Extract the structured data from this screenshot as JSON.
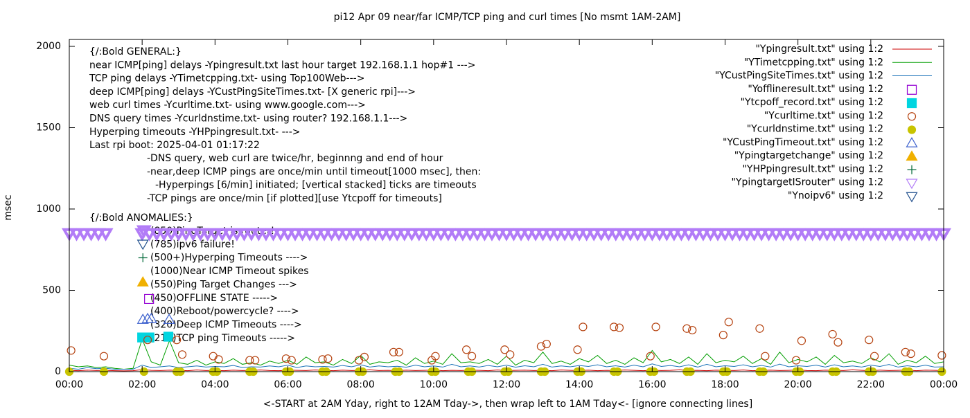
{
  "chart_data": {
    "type": "mixed",
    "title": "pi12 Apr 09  near/far ICMP/TCP ping and curl times [No msmt 1AM-2AM]",
    "x_label": "<-START at 2AM Yday, right to 12AM Tday->, then wrap left to 1AM Tday<- [ignore connecting lines]",
    "y_label": "msec",
    "xlim": [
      0,
      24
    ],
    "ylim": [
      0,
      2000
    ],
    "xticks": [
      {
        "value": 0,
        "label": "00:00"
      },
      {
        "value": 2,
        "label": "02:00"
      },
      {
        "value": 4,
        "label": "04:00"
      },
      {
        "value": 6,
        "label": "06:00"
      },
      {
        "value": 8,
        "label": "08:00"
      },
      {
        "value": 10,
        "label": "10:00"
      },
      {
        "value": 12,
        "label": "12:00"
      },
      {
        "value": 14,
        "label": "14:00"
      },
      {
        "value": 16,
        "label": "16:00"
      },
      {
        "value": 18,
        "label": "18:00"
      },
      {
        "value": 20,
        "label": "20:00"
      },
      {
        "value": 22,
        "label": "22:00"
      },
      {
        "value": 24,
        "label": "00:00"
      }
    ],
    "yticks": [
      0,
      500,
      1000,
      1500,
      2000
    ],
    "grid": false,
    "legend": "top-right",
    "annotations": [
      "{/:Bold GENERAL:}",
      "near ICMP[ping] delays -Ypingresult.txt last hour target 192.168.1.1 hop#1 --->",
      "TCP ping delays -YTimetcpping.txt- using Top100Web--->",
      "deep ICMP[ping] delays -YCustPingSiteTimes.txt- [X generic rpi]--->",
      "web curl times -Ycurltime.txt- using www.google.com--->",
      "DNS query times -Ycurldnstime.txt- using router? 192.168.1.1--->",
      "Hyperping timeouts -YHPpingresult.txt- --->",
      "Last rpi boot: 2025-04-01 01:17:22",
      "-DNS query, web curl are twice/hr, beginnng and end of hour",
      "-near,deep ICMP pings are once/min until timeout[1000 msec], then:",
      "-Hyperpings [6/min] initiated; [vertical stacked] ticks are timeouts",
      "-TCP pings are once/min [if plotted][use Ytcpoff for timeouts]",
      "{/:Bold ANOMALIES:}",
      "(850)PingTarget is router!",
      "(785)ipv6 failure!",
      "(500+)Hyperping Timeouts ---->",
      "(1000)Near ICMP Timeout spikes",
      "(550)Ping Target Changes --->",
      "(450)OFFLINE STATE ----->",
      "(400)Reboot/powercycle? ---->",
      "(320)Deep ICMP Timeouts ---->",
      "(210)TCP ping Timeouts ----->"
    ],
    "x": [
      0,
      0.25,
      0.5,
      0.75,
      1,
      1.25,
      1.5,
      1.75,
      2,
      2.25,
      2.5,
      2.75,
      3,
      3.25,
      3.5,
      3.75,
      4,
      4.25,
      4.5,
      4.75,
      5,
      5.25,
      5.5,
      5.75,
      6,
      6.25,
      6.5,
      6.75,
      7,
      7.25,
      7.5,
      7.75,
      8,
      8.25,
      8.5,
      8.75,
      9,
      9.25,
      9.5,
      9.75,
      10,
      10.25,
      10.5,
      10.75,
      11,
      11.25,
      11.5,
      11.75,
      12,
      12.25,
      12.5,
      12.75,
      13,
      13.25,
      13.5,
      13.75,
      14,
      14.25,
      14.5,
      14.75,
      15,
      15.25,
      15.5,
      15.75,
      16,
      16.25,
      16.5,
      16.75,
      17,
      17.25,
      17.5,
      17.75,
      18,
      18.25,
      18.5,
      18.75,
      19,
      19.25,
      19.5,
      19.75,
      20,
      20.25,
      20.5,
      20.75,
      21,
      21.25,
      21.5,
      21.75,
      22,
      22.25,
      22.5,
      22.75,
      23,
      23.25,
      23.5,
      23.75,
      24
    ],
    "series": [
      {
        "name": "\"Ypingresult.txt\" using 1:2",
        "color": "#cc0000",
        "style": "line",
        "values": [
          8,
          6,
          9,
          7,
          8,
          6,
          5,
          6,
          12,
          8,
          7,
          9,
          8,
          6,
          10,
          7,
          8,
          6,
          9,
          7,
          8,
          10,
          7,
          6,
          9,
          8,
          7,
          10,
          8,
          6,
          9,
          7,
          8,
          11,
          7,
          8,
          6,
          9,
          7,
          8,
          10,
          6,
          8,
          7,
          9,
          8,
          6,
          10,
          7,
          8,
          9,
          7,
          8,
          6,
          10,
          8,
          7,
          9,
          6,
          8,
          7,
          10,
          8,
          6,
          9,
          7,
          8,
          11,
          7,
          8,
          6,
          9,
          8,
          7,
          10,
          6,
          8,
          9,
          7,
          8,
          10,
          7,
          6,
          9,
          8,
          7,
          11,
          8,
          6,
          9,
          7,
          8,
          10,
          6,
          9,
          8,
          7
        ]
      },
      {
        "name": "\"YTimetcpping.txt\" using 1:2",
        "color": "#009e00",
        "style": "line",
        "values": [
          40,
          30,
          35,
          25,
          30,
          20,
          15,
          20,
          200,
          60,
          40,
          190,
          55,
          45,
          70,
          40,
          60,
          50,
          80,
          45,
          55,
          40,
          65,
          50,
          70,
          45,
          90,
          55,
          60,
          40,
          75,
          50,
          100,
          45,
          60,
          55,
          70,
          40,
          85,
          50,
          65,
          45,
          110,
          55,
          60,
          50,
          75,
          45,
          95,
          40,
          70,
          55,
          120,
          50,
          65,
          45,
          80,
          60,
          100,
          50,
          70,
          45,
          85,
          55,
          130,
          60,
          75,
          50,
          90,
          45,
          110,
          55,
          70,
          60,
          95,
          50,
          80,
          45,
          120,
          55,
          75,
          60,
          90,
          45,
          100,
          55,
          65,
          50,
          85,
          60,
          110,
          45,
          70,
          55,
          95,
          50,
          60
        ]
      },
      {
        "name": "\"YCustPingSiteTimes.txt\" using 1:2",
        "color": "#1a72b8",
        "style": "line",
        "values": [
          20,
          15,
          25,
          18,
          20,
          15,
          15,
          15,
          40,
          25,
          30,
          35,
          25,
          30,
          35,
          28,
          32,
          30,
          38,
          25,
          30,
          28,
          35,
          30,
          40,
          25,
          35,
          30,
          32,
          28,
          38,
          30,
          42,
          28,
          35,
          30,
          33,
          27,
          40,
          30,
          35,
          28,
          45,
          30,
          35,
          28,
          38,
          30,
          40,
          27,
          36,
          30,
          45,
          28,
          35,
          30,
          38,
          32,
          42,
          30,
          36,
          28,
          40,
          30,
          48,
          32,
          38,
          30,
          42,
          28,
          45,
          30,
          36,
          32,
          42,
          30,
          38,
          28,
          46,
          30,
          36,
          32,
          40,
          28,
          42,
          30,
          35,
          28,
          40,
          32,
          44,
          28,
          36,
          30,
          40,
          28,
          30
        ]
      },
      {
        "name": "\"Yofflineresult.txt\" using 1:2",
        "color": "#9400d3",
        "style": "marker",
        "marker": "square-open",
        "x": [
          2.19
        ],
        "values": [
          447
        ]
      },
      {
        "name": "\"Ytcpoff_record.txt\" using 1:2",
        "color": "#00d5e0",
        "style": "marker",
        "marker": "square-filled",
        "x": [
          2,
          2.2,
          2.72
        ],
        "values": [
          210,
          210,
          215
        ]
      },
      {
        "name": "\"Ycurltime.txt\" using 1:2",
        "color": "#b5420f",
        "style": "marker",
        "marker": "circle-open",
        "x": [
          0.05,
          0.95,
          2.15,
          2.95,
          3.1,
          3.95,
          4.1,
          4.95,
          5.1,
          5.95,
          6.1,
          6.95,
          7.1,
          7.95,
          8.1,
          8.9,
          9.05,
          9.95,
          10.05,
          10.9,
          11.05,
          11.95,
          12.1,
          12.95,
          13.1,
          13.95,
          14.1,
          14.95,
          15.1,
          15.95,
          16.1,
          16.95,
          17.1,
          17.95,
          18.1,
          18.95,
          19.1,
          19.95,
          20.1,
          20.95,
          21.1,
          21.95,
          22.1,
          22.95,
          23.1,
          23.95
        ],
        "values": [
          130,
          95,
          195,
          195,
          105,
          95,
          75,
          70,
          70,
          80,
          70,
          75,
          80,
          70,
          90,
          120,
          120,
          70,
          95,
          135,
          95,
          135,
          105,
          155,
          170,
          135,
          275,
          275,
          270,
          95,
          275,
          265,
          255,
          225,
          305,
          265,
          95,
          70,
          190,
          230,
          180,
          195,
          95,
          120,
          110,
          100
        ]
      },
      {
        "name": "\"Ycurldnstime.txt\" using 1:2",
        "color": "#c8c400",
        "style": "marker",
        "marker": "circle-filled",
        "x": [
          0,
          0.95,
          2.05,
          2.95,
          3.05,
          3.95,
          4.05,
          4.95,
          5.05,
          5.95,
          6.05,
          6.95,
          7.05,
          7.95,
          8.05,
          8.95,
          9.05,
          9.95,
          10.05,
          10.95,
          11.05,
          11.95,
          12.05,
          12.95,
          13.05,
          13.95,
          14.05,
          14.95,
          15.05,
          15.95,
          16.05,
          16.95,
          17.05,
          17.95,
          18.05,
          18.95,
          19.05,
          19.95,
          20.05,
          20.95,
          21.05,
          21.95,
          22.05,
          22.95,
          23.05,
          23.95
        ],
        "values": [
          0,
          0,
          0,
          0,
          0,
          0,
          0,
          0,
          0,
          0,
          0,
          0,
          0,
          0,
          0,
          0,
          0,
          0,
          0,
          0,
          0,
          0,
          0,
          0,
          0,
          0,
          0,
          0,
          0,
          0,
          0,
          0,
          0,
          0,
          0,
          0,
          0,
          0,
          0,
          0,
          0,
          0,
          0,
          0,
          0,
          0
        ]
      },
      {
        "name": "\"YCustPingTimeout.txt\" using 1:2",
        "color": "#3a5fcd",
        "style": "marker",
        "marker": "triangle-open",
        "x": [
          2.02,
          2.15,
          2.25,
          2.74
        ],
        "values": [
          320,
          325,
          325,
          320
        ]
      },
      {
        "name": "\"Ypingtargetchange\" using 1:2",
        "color": "#f0b000",
        "style": "marker",
        "marker": "triangle-filled",
        "x": [
          2.02
        ],
        "values": [
          550
        ]
      },
      {
        "name": "\"YHPpingresult.txt\" using 1:2",
        "color": "#006837",
        "style": "marker",
        "marker": "plus",
        "x": [
          2.02
        ],
        "values": [
          700
        ]
      },
      {
        "name": "\"YpingtargetISrouter\" using 1:2",
        "color": "#b27cf7",
        "style": "marker",
        "marker": "triangle-down-open",
        "x": [
          0,
          0.2,
          0.4,
          0.6,
          0.8,
          1,
          2,
          2.2,
          2.4,
          2.6,
          2.8,
          3,
          3.2,
          3.4,
          3.6,
          3.8,
          4,
          4.2,
          4.4,
          4.6,
          4.8,
          5,
          5.2,
          5.4,
          5.6,
          5.8,
          6,
          6.2,
          6.4,
          6.6,
          6.8,
          7,
          7.2,
          7.4,
          7.6,
          7.8,
          8,
          8.2,
          8.4,
          8.6,
          8.8,
          9,
          9.2,
          9.4,
          9.6,
          9.8,
          10,
          10.2,
          10.4,
          10.6,
          10.8,
          11,
          11.2,
          11.4,
          11.6,
          11.8,
          12,
          12.2,
          12.4,
          12.6,
          12.8,
          13,
          13.2,
          13.4,
          13.6,
          13.8,
          14,
          14.2,
          14.4,
          14.6,
          14.8,
          15,
          15.2,
          15.4,
          15.6,
          15.8,
          16,
          16.2,
          16.4,
          16.6,
          16.8,
          17,
          17.2,
          17.4,
          17.6,
          17.8,
          18,
          18.2,
          18.4,
          18.6,
          18.8,
          19,
          19.2,
          19.4,
          19.6,
          19.8,
          20,
          20.2,
          20.4,
          20.6,
          20.8,
          21,
          21.2,
          21.4,
          21.6,
          21.8,
          22,
          22.2,
          22.4,
          22.6,
          22.8,
          23,
          23.2,
          23.4,
          23.6,
          23.8,
          24,
          2.05
        ],
        "values": [
          850,
          850,
          850,
          850,
          850,
          850,
          850,
          850,
          850,
          850,
          850,
          850,
          850,
          850,
          850,
          850,
          850,
          850,
          850,
          850,
          850,
          850,
          850,
          850,
          850,
          850,
          850,
          850,
          850,
          850,
          850,
          850,
          850,
          850,
          850,
          850,
          850,
          850,
          850,
          850,
          850,
          850,
          850,
          850,
          850,
          850,
          850,
          850,
          850,
          850,
          850,
          850,
          850,
          850,
          850,
          850,
          850,
          850,
          850,
          850,
          850,
          850,
          850,
          850,
          850,
          850,
          850,
          850,
          850,
          850,
          850,
          850,
          850,
          850,
          850,
          850,
          850,
          850,
          850,
          850,
          850,
          850,
          850,
          850,
          850,
          850,
          850,
          850,
          850,
          850,
          850,
          850,
          850,
          850,
          850,
          850,
          850,
          850,
          850,
          850,
          850,
          850,
          850,
          850,
          850,
          850,
          850,
          850,
          850,
          850,
          850,
          850,
          850,
          850,
          850,
          850,
          850,
          868
        ]
      },
      {
        "name": "\"Ynoipv6\" using 1:2",
        "color": "#1f4e8c",
        "style": "marker",
        "marker": "triangle-down-open",
        "x": [
          2.02
        ],
        "values": [
          785
        ]
      }
    ]
  }
}
